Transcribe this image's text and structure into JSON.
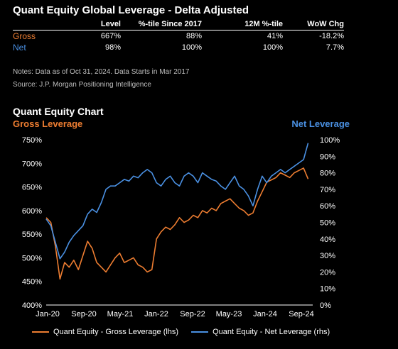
{
  "header": {
    "title": "Quant Equity Global Leverage - Delta Adjusted",
    "columns": [
      "Level",
      "%-tile Since 2017",
      "12M %-tile",
      "WoW Chg"
    ],
    "rows": [
      {
        "label": "Gross",
        "color": "#ED7D31",
        "values": [
          "667%",
          "88%",
          "41%",
          "-18.2%"
        ]
      },
      {
        "label": "Net",
        "color": "#4A90E2",
        "values": [
          "98%",
          "100%",
          "100%",
          "7.7%"
        ]
      }
    ],
    "notes": "Notes: Data as of Oct 31, 2024. Data Starts in Mar 2017",
    "source": "Source: J.P. Morgan Positioning Intelligence"
  },
  "chart_data": {
    "type": "line",
    "title": "Quant Equity Chart",
    "left_axis_label": "Gross Leverage",
    "right_axis_label": "Net Leverage",
    "x_ticks": [
      "Jan-20",
      "Sep-20",
      "May-21",
      "Jan-22",
      "Sep-22",
      "May-23",
      "Jan-24",
      "Sep-24"
    ],
    "x_range": [
      "2020-01",
      "2024-11"
    ],
    "y_left": {
      "ticks": [
        "400%",
        "450%",
        "500%",
        "550%",
        "600%",
        "650%",
        "700%",
        "750%"
      ],
      "range": [
        400,
        750
      ]
    },
    "y_right": {
      "ticks": [
        "0%",
        "10%",
        "20%",
        "30%",
        "40%",
        "50%",
        "60%",
        "70%",
        "80%",
        "90%",
        "100%"
      ],
      "range": [
        0,
        100
      ]
    },
    "grid": false,
    "legend_placement": "bottom",
    "series": [
      {
        "name": "Quant Equity - Gross Leverage (lhs)",
        "axis": "left",
        "color": "#ED7D31",
        "x": [
          "2020-01",
          "2020-02",
          "2020-03",
          "2020-04",
          "2020-05",
          "2020-06",
          "2020-07",
          "2020-08",
          "2020-09",
          "2020-10",
          "2020-11",
          "2020-12",
          "2021-01",
          "2021-02",
          "2021-03",
          "2021-04",
          "2021-05",
          "2021-06",
          "2021-07",
          "2021-08",
          "2021-09",
          "2021-10",
          "2021-11",
          "2021-12",
          "2022-01",
          "2022-02",
          "2022-03",
          "2022-04",
          "2022-05",
          "2022-06",
          "2022-07",
          "2022-08",
          "2022-09",
          "2022-10",
          "2022-11",
          "2022-12",
          "2023-01",
          "2023-02",
          "2023-03",
          "2023-04",
          "2023-05",
          "2023-06",
          "2023-07",
          "2023-08",
          "2023-09",
          "2023-10",
          "2023-11",
          "2023-12",
          "2024-01",
          "2024-02",
          "2024-03",
          "2024-04",
          "2024-05",
          "2024-06",
          "2024-07",
          "2024-08",
          "2024-09",
          "2024-10"
        ],
        "values": [
          585,
          575,
          525,
          455,
          490,
          480,
          495,
          475,
          505,
          535,
          520,
          490,
          480,
          470,
          485,
          500,
          510,
          490,
          495,
          500,
          485,
          480,
          470,
          475,
          540,
          555,
          565,
          560,
          570,
          585,
          575,
          580,
          590,
          585,
          600,
          595,
          605,
          600,
          615,
          620,
          625,
          615,
          605,
          600,
          590,
          595,
          620,
          640,
          660,
          665,
          670,
          680,
          675,
          670,
          680,
          685,
          690,
          667
        ]
      },
      {
        "name": "Quant Equity - Net Leverage (rhs)",
        "axis": "right",
        "color": "#4A90E2",
        "x": [
          "2020-01",
          "2020-02",
          "2020-03",
          "2020-04",
          "2020-05",
          "2020-06",
          "2020-07",
          "2020-08",
          "2020-09",
          "2020-10",
          "2020-11",
          "2020-12",
          "2021-01",
          "2021-02",
          "2021-03",
          "2021-04",
          "2021-05",
          "2021-06",
          "2021-07",
          "2021-08",
          "2021-09",
          "2021-10",
          "2021-11",
          "2021-12",
          "2022-01",
          "2022-02",
          "2022-03",
          "2022-04",
          "2022-05",
          "2022-06",
          "2022-07",
          "2022-08",
          "2022-09",
          "2022-10",
          "2022-11",
          "2022-12",
          "2023-01",
          "2023-02",
          "2023-03",
          "2023-04",
          "2023-05",
          "2023-06",
          "2023-07",
          "2023-08",
          "2023-09",
          "2023-10",
          "2023-11",
          "2023-12",
          "2024-01",
          "2024-02",
          "2024-03",
          "2024-04",
          "2024-05",
          "2024-06",
          "2024-07",
          "2024-08",
          "2024-09",
          "2024-10"
        ],
        "values": [
          52,
          48,
          38,
          28,
          32,
          38,
          42,
          45,
          48,
          55,
          58,
          56,
          62,
          70,
          72,
          72,
          74,
          76,
          75,
          78,
          77,
          80,
          82,
          80,
          74,
          72,
          76,
          78,
          74,
          72,
          78,
          80,
          78,
          74,
          80,
          78,
          76,
          75,
          72,
          70,
          74,
          78,
          72,
          70,
          66,
          60,
          70,
          78,
          74,
          78,
          80,
          82,
          80,
          82,
          84,
          86,
          88,
          98
        ]
      }
    ]
  }
}
